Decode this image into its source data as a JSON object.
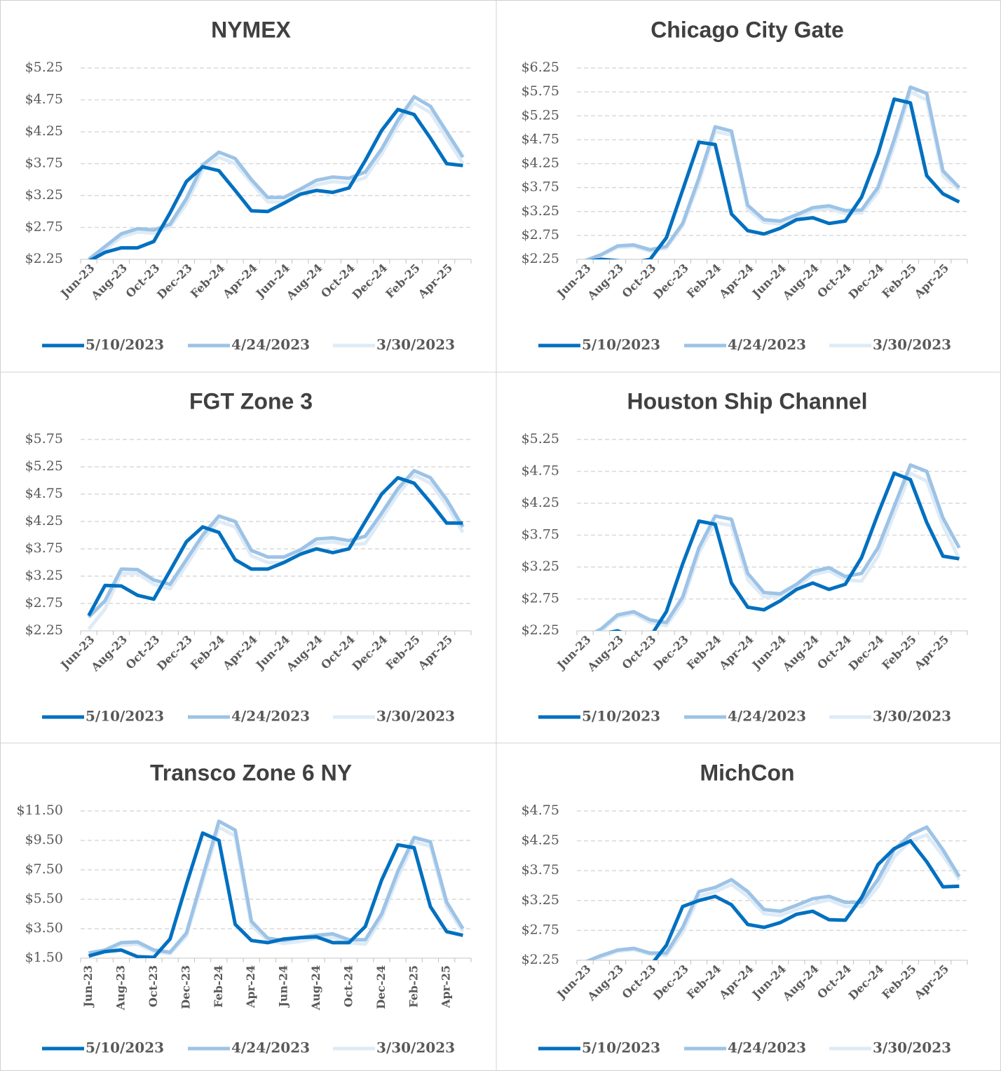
{
  "chart_data": [
    {
      "type": "line",
      "title": "NYMEX",
      "categories": [
        "Jun-23",
        null,
        "Aug-23",
        null,
        "Oct-23",
        null,
        "Dec-23",
        null,
        "Feb-24",
        null,
        "Apr-24",
        null,
        "Jun-24",
        null,
        "Aug-24",
        null,
        "Oct-24",
        null,
        "Dec-24",
        null,
        "Feb-25",
        null,
        "Apr-25",
        null
      ],
      "ylim": [
        2.25,
        5.25
      ],
      "yticks": [
        {
          "value": 2.25,
          "label": "$2.25"
        },
        {
          "value": 2.75,
          "label": "$2.75"
        },
        {
          "value": 3.25,
          "label": "$3.25"
        },
        {
          "value": 3.75,
          "label": "$3.75"
        },
        {
          "value": 4.25,
          "label": "$4.25"
        },
        {
          "value": 4.75,
          "label": "$4.75"
        },
        {
          "value": 5.25,
          "label": "$5.25"
        }
      ],
      "grid": true,
      "legend": "bottom",
      "series": [
        {
          "name": "5/10/2023",
          "color": "#0070c0",
          "values": [
            2.22,
            2.36,
            2.43,
            2.43,
            2.53,
            2.98,
            3.47,
            3.7,
            3.64,
            3.33,
            3.01,
            3.0,
            3.13,
            3.27,
            3.33,
            3.3,
            3.37,
            3.8,
            4.27,
            4.6,
            4.52,
            4.15,
            3.75,
            3.72
          ]
        },
        {
          "name": "4/24/2023",
          "color": "#9dc3e6",
          "values": [
            2.25,
            2.45,
            2.65,
            2.73,
            2.71,
            2.8,
            3.2,
            3.73,
            3.93,
            3.83,
            3.5,
            3.22,
            3.22,
            3.35,
            3.49,
            3.54,
            3.52,
            3.62,
            3.98,
            4.43,
            4.8,
            4.65,
            4.25,
            3.85
          ]
        },
        {
          "name": "3/30/2023",
          "color": "#deebf7",
          "values": [
            2.22,
            2.4,
            2.6,
            2.68,
            2.66,
            2.76,
            3.12,
            3.65,
            3.85,
            3.75,
            3.45,
            3.15,
            3.15,
            3.28,
            3.42,
            3.47,
            3.45,
            3.53,
            3.9,
            4.35,
            4.7,
            4.55,
            4.15,
            3.75
          ]
        }
      ]
    },
    {
      "type": "line",
      "title": "Chicago City Gate",
      "categories": [
        "Jun-23",
        null,
        "Aug-23",
        null,
        "Oct-23",
        null,
        "Dec-23",
        null,
        "Feb-24",
        null,
        "Apr-24",
        null,
        "Jun-24",
        null,
        "Aug-24",
        null,
        "Oct-24",
        null,
        "Dec-24",
        null,
        "Feb-25",
        null,
        "Apr-25",
        null
      ],
      "ylim": [
        2.25,
        6.25
      ],
      "yticks": [
        {
          "value": 2.25,
          "label": "$2.25"
        },
        {
          "value": 2.75,
          "label": "$2.75"
        },
        {
          "value": 3.25,
          "label": "$3.25"
        },
        {
          "value": 3.75,
          "label": "$3.75"
        },
        {
          "value": 4.25,
          "label": "$4.25"
        },
        {
          "value": 4.75,
          "label": "$4.75"
        },
        {
          "value": 5.25,
          "label": "$5.25"
        },
        {
          "value": 5.75,
          "label": "$5.75"
        },
        {
          "value": 6.25,
          "label": "$6.25"
        }
      ],
      "grid": true,
      "legend": "bottom",
      "series": [
        {
          "name": "5/10/2023",
          "color": "#0070c0",
          "values": [
            2.2,
            2.25,
            2.22,
            2.18,
            2.25,
            2.7,
            3.7,
            4.7,
            4.65,
            3.2,
            2.85,
            2.78,
            2.9,
            3.08,
            3.12,
            3.0,
            3.05,
            3.55,
            4.45,
            5.6,
            5.52,
            4.0,
            3.62,
            3.45
          ]
        },
        {
          "name": "4/24/2023",
          "color": "#9dc3e6",
          "values": [
            2.22,
            2.35,
            2.53,
            2.55,
            2.45,
            2.52,
            3.0,
            3.95,
            5.02,
            4.93,
            3.38,
            3.08,
            3.05,
            3.18,
            3.33,
            3.37,
            3.27,
            3.28,
            3.75,
            4.75,
            5.85,
            5.72,
            4.1,
            3.75
          ]
        },
        {
          "name": "3/30/2023",
          "color": "#deebf7",
          "values": [
            2.2,
            2.33,
            2.5,
            2.52,
            2.42,
            2.48,
            2.95,
            3.85,
            4.92,
            4.85,
            3.3,
            3.02,
            2.99,
            3.12,
            3.27,
            3.31,
            3.21,
            3.22,
            3.65,
            4.62,
            5.75,
            5.58,
            4.0,
            3.7
          ]
        }
      ]
    },
    {
      "type": "line",
      "title": "FGT Zone 3",
      "categories": [
        "Jun-23",
        null,
        "Aug-23",
        null,
        "Oct-23",
        null,
        "Dec-23",
        null,
        "Feb-24",
        null,
        "Apr-24",
        null,
        "Jun-24",
        null,
        "Aug-24",
        null,
        "Oct-24",
        null,
        "Dec-24",
        null,
        "Feb-25",
        null,
        "Apr-25",
        null
      ],
      "ylim": [
        2.25,
        5.75
      ],
      "yticks": [
        {
          "value": 2.25,
          "label": "$2.25"
        },
        {
          "value": 2.75,
          "label": "$2.75"
        },
        {
          "value": 3.25,
          "label": "$3.25"
        },
        {
          "value": 3.75,
          "label": "$3.75"
        },
        {
          "value": 4.25,
          "label": "$4.25"
        },
        {
          "value": 4.75,
          "label": "$4.75"
        },
        {
          "value": 5.25,
          "label": "$5.25"
        },
        {
          "value": 5.75,
          "label": "$5.75"
        }
      ],
      "grid": true,
      "legend": "bottom",
      "series": [
        {
          "name": "5/10/2023",
          "color": "#0070c0",
          "values": [
            2.53,
            3.08,
            3.07,
            2.9,
            2.83,
            3.35,
            3.88,
            4.15,
            4.05,
            3.55,
            3.38,
            3.38,
            3.5,
            3.65,
            3.75,
            3.68,
            3.75,
            4.25,
            4.75,
            5.05,
            4.95,
            4.6,
            4.22,
            4.22
          ]
        },
        {
          "name": "4/24/2023",
          "color": "#9dc3e6",
          "values": [
            2.5,
            2.8,
            3.38,
            3.37,
            3.18,
            3.1,
            3.55,
            4.0,
            4.35,
            4.25,
            3.72,
            3.6,
            3.6,
            3.73,
            3.93,
            3.95,
            3.9,
            3.98,
            4.4,
            4.85,
            5.18,
            5.05,
            4.65,
            4.15
          ]
        },
        {
          "name": "3/30/2023",
          "color": "#deebf7",
          "values": [
            2.28,
            2.65,
            3.3,
            3.3,
            3.1,
            3.02,
            3.45,
            3.92,
            4.25,
            4.15,
            3.62,
            3.5,
            3.5,
            3.65,
            3.85,
            3.88,
            3.82,
            3.85,
            4.3,
            4.75,
            5.1,
            4.95,
            4.55,
            4.05
          ]
        }
      ]
    },
    {
      "type": "line",
      "title": "Houston Ship Channel",
      "categories": [
        "Jun-23",
        null,
        "Aug-23",
        null,
        "Oct-23",
        null,
        "Dec-23",
        null,
        "Feb-24",
        null,
        "Apr-24",
        null,
        "Jun-24",
        null,
        "Aug-24",
        null,
        "Oct-24",
        null,
        "Dec-24",
        null,
        "Feb-25",
        null,
        "Apr-25",
        null
      ],
      "ylim": [
        2.25,
        5.25
      ],
      "yticks": [
        {
          "value": 2.25,
          "label": "$2.25"
        },
        {
          "value": 2.75,
          "label": "$2.75"
        },
        {
          "value": 3.25,
          "label": "$3.25"
        },
        {
          "value": 3.75,
          "label": "$3.75"
        },
        {
          "value": 4.25,
          "label": "$4.25"
        },
        {
          "value": 4.75,
          "label": "$4.75"
        },
        {
          "value": 5.25,
          "label": "$5.25"
        }
      ],
      "grid": true,
      "legend": "bottom",
      "series": [
        {
          "name": "5/10/2023",
          "color": "#0070c0",
          "values": [
            2.1,
            2.2,
            2.25,
            2.15,
            2.15,
            2.55,
            3.3,
            3.97,
            3.92,
            3.0,
            2.62,
            2.58,
            2.72,
            2.9,
            3.0,
            2.9,
            2.98,
            3.4,
            4.08,
            4.72,
            4.62,
            3.95,
            3.42,
            3.38
          ]
        },
        {
          "name": "4/24/2023",
          "color": "#9dc3e6",
          "values": [
            2.15,
            2.28,
            2.5,
            2.55,
            2.42,
            2.38,
            2.78,
            3.55,
            4.05,
            4.0,
            3.15,
            2.85,
            2.83,
            2.98,
            3.18,
            3.24,
            3.1,
            3.15,
            3.55,
            4.2,
            4.85,
            4.75,
            4.02,
            3.55
          ]
        },
        {
          "name": "3/30/2023",
          "color": "#deebf7",
          "values": [
            2.12,
            2.25,
            2.47,
            2.52,
            2.38,
            2.33,
            2.7,
            3.47,
            3.95,
            3.9,
            3.05,
            2.78,
            2.8,
            2.93,
            3.13,
            3.19,
            3.05,
            3.03,
            3.42,
            4.08,
            4.72,
            4.6,
            3.9,
            3.38
          ]
        }
      ]
    },
    {
      "type": "line",
      "title": "Transco Zone 6 NY",
      "categories": [
        "Jun-23",
        null,
        "Aug-23",
        null,
        "Oct-23",
        null,
        "Dec-23",
        null,
        "Feb-24",
        null,
        "Apr-24",
        null,
        "Jun-24",
        null,
        "Aug-24",
        null,
        "Oct-24",
        null,
        "Dec-24",
        null,
        "Feb-25",
        null,
        "Apr-25",
        null
      ],
      "ylim": [
        1.5,
        11.5
      ],
      "yticks": [
        {
          "value": 1.5,
          "label": "$1.50"
        },
        {
          "value": 3.5,
          "label": "$3.50"
        },
        {
          "value": 5.5,
          "label": "$5.50"
        },
        {
          "value": 7.5,
          "label": "$7.50"
        },
        {
          "value": 9.5,
          "label": "$9.50"
        },
        {
          "value": 11.5,
          "label": "$11.50"
        }
      ],
      "grid": true,
      "legend": "bottom",
      "series": [
        {
          "name": "5/10/2023",
          "color": "#0070c0",
          "values": [
            1.65,
            1.95,
            2.05,
            1.6,
            1.55,
            2.8,
            6.5,
            10.0,
            9.5,
            3.8,
            2.7,
            2.55,
            2.8,
            2.9,
            2.95,
            2.55,
            2.55,
            3.65,
            6.8,
            9.2,
            9.0,
            5.0,
            3.3,
            3.05
          ]
        },
        {
          "name": "4/24/2023",
          "color": "#9dc3e6",
          "values": [
            1.85,
            2.05,
            2.55,
            2.6,
            2.05,
            1.9,
            3.2,
            7.0,
            10.8,
            10.2,
            4.0,
            2.85,
            2.7,
            2.9,
            3.05,
            3.15,
            2.75,
            2.75,
            4.5,
            7.4,
            9.7,
            9.4,
            5.3,
            3.5
          ]
        },
        {
          "name": "3/30/2023",
          "color": "#deebf7",
          "values": [
            1.8,
            1.98,
            2.4,
            2.45,
            1.95,
            1.8,
            3.0,
            6.7,
            10.4,
            9.8,
            3.7,
            2.7,
            2.5,
            2.65,
            2.85,
            2.9,
            2.55,
            2.45,
            4.2,
            7.0,
            9.4,
            9.1,
            5.0,
            3.3
          ]
        }
      ]
    },
    {
      "type": "line",
      "title": "MichCon",
      "categories": [
        "Jun-23",
        null,
        "Aug-23",
        null,
        "Oct-23",
        null,
        "Dec-23",
        null,
        "Feb-24",
        null,
        "Apr-24",
        null,
        "Jun-24",
        null,
        "Aug-24",
        null,
        "Oct-24",
        null,
        "Dec-24",
        null,
        "Feb-25",
        null,
        "Apr-25",
        null
      ],
      "ylim": [
        2.25,
        4.75
      ],
      "yticks": [
        {
          "value": 2.25,
          "label": "$2.25"
        },
        {
          "value": 2.75,
          "label": "$2.75"
        },
        {
          "value": 3.25,
          "label": "$3.25"
        },
        {
          "value": 3.75,
          "label": "$3.75"
        },
        {
          "value": 4.25,
          "label": "$4.25"
        },
        {
          "value": 4.75,
          "label": "$4.75"
        }
      ],
      "grid": true,
      "legend": "bottom",
      "series": [
        {
          "name": "5/10/2023",
          "color": "#0070c0",
          "values": [
            2.15,
            2.22,
            2.22,
            2.18,
            2.15,
            2.5,
            3.15,
            3.25,
            3.32,
            3.18,
            2.85,
            2.8,
            2.88,
            3.02,
            3.07,
            2.93,
            2.92,
            3.3,
            3.85,
            4.12,
            4.25,
            3.9,
            3.48,
            3.49
          ]
        },
        {
          "name": "4/24/2023",
          "color": "#9dc3e6",
          "values": [
            2.22,
            2.33,
            2.42,
            2.45,
            2.37,
            2.37,
            2.8,
            3.4,
            3.47,
            3.6,
            3.4,
            3.1,
            3.07,
            3.17,
            3.28,
            3.32,
            3.22,
            3.22,
            3.6,
            4.1,
            4.35,
            4.48,
            4.1,
            3.65
          ]
        },
        {
          "name": "3/30/2023",
          "color": "#deebf7",
          "values": [
            2.2,
            2.3,
            2.4,
            2.43,
            2.35,
            2.33,
            2.72,
            3.32,
            3.4,
            3.52,
            3.32,
            3.03,
            3.0,
            3.1,
            3.2,
            3.26,
            3.15,
            3.15,
            3.48,
            3.98,
            4.25,
            4.35,
            4.0,
            3.6
          ]
        }
      ]
    }
  ]
}
